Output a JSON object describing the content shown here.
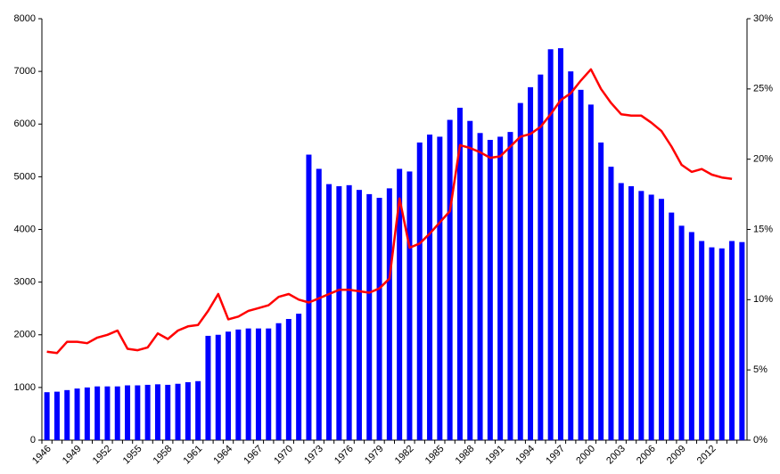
{
  "chart_data": {
    "type": "bar",
    "categories": [
      "1946",
      null,
      null,
      "1949",
      null,
      null,
      "1952",
      null,
      null,
      "1955",
      null,
      null,
      "1958",
      null,
      null,
      "1961",
      null,
      null,
      "1964",
      null,
      null,
      "1967",
      null,
      null,
      "1970",
      null,
      null,
      "1973",
      null,
      null,
      "1976",
      null,
      null,
      "1979",
      null,
      null,
      "1982",
      null,
      null,
      "1985",
      null,
      null,
      "1988",
      null,
      null,
      "1991",
      null,
      null,
      "1994",
      null,
      null,
      "1997",
      null,
      null,
      "2000",
      null,
      null,
      "2003",
      null,
      null,
      "2006",
      null,
      null,
      "2009",
      null,
      null,
      "2012",
      null,
      null,
      null
    ],
    "series": [
      {
        "type": "bar",
        "color": "#0000ff",
        "values": [
          910,
          920,
          950,
          980,
          1000,
          1020,
          1020,
          1020,
          1040,
          1040,
          1050,
          1060,
          1050,
          1070,
          1100,
          1120,
          1980,
          2000,
          2060,
          2100,
          2120,
          2120,
          2120,
          2220,
          2300,
          2400,
          5420,
          5150,
          4860,
          4820,
          4840,
          4750,
          4670,
          4600,
          4780,
          5150,
          5100,
          5650,
          5800,
          5760,
          6080,
          6310,
          6060,
          5830,
          5700,
          5760,
          5850,
          6400,
          6700,
          6940,
          7420,
          7440,
          7000,
          6650,
          6370,
          5650,
          5190,
          4880,
          4820,
          4730,
          4660,
          4580,
          4320,
          4070,
          3950,
          3780,
          3660,
          3640,
          3780,
          3760
        ]
      },
      {
        "type": "line",
        "axis": "y2",
        "color": "#ff0000",
        "values": [
          6.3,
          6.2,
          7.0,
          7.0,
          6.9,
          7.3,
          7.5,
          7.8,
          6.5,
          6.4,
          6.6,
          7.6,
          7.2,
          7.8,
          8.1,
          8.2,
          9.2,
          10.4,
          8.6,
          8.8,
          9.2,
          9.4,
          9.6,
          10.2,
          10.4,
          10.0,
          9.8,
          10.1,
          10.4,
          10.7,
          10.7,
          10.6,
          10.5,
          10.8,
          11.5,
          17.2,
          13.7,
          14.0,
          14.7,
          15.5,
          16.3,
          21.0,
          20.8,
          20.5,
          20.1,
          20.2,
          20.9,
          21.6,
          21.8,
          22.3,
          23.2,
          24.2,
          24.7,
          25.6,
          26.4,
          25.0,
          24.0,
          23.2,
          23.1,
          23.1,
          22.6,
          22.0,
          20.9,
          19.6,
          19.1,
          19.3,
          18.9,
          18.7,
          18.6,
          null
        ]
      }
    ],
    "ylim": [
      0,
      8000
    ],
    "yticks": [
      0,
      1000,
      2000,
      3000,
      4000,
      5000,
      6000,
      7000,
      8000
    ],
    "y2lim": [
      0,
      30
    ],
    "y2ticks": [
      {
        "value": 0,
        "label": "0%"
      },
      {
        "value": 5,
        "label": "5%"
      },
      {
        "value": 10,
        "label": "10%"
      },
      {
        "value": 15,
        "label": "15%"
      },
      {
        "value": 20,
        "label": "20%"
      },
      {
        "value": 25,
        "label": "25%"
      },
      {
        "value": 30,
        "label": "30%"
      }
    ],
    "grid": false
  }
}
